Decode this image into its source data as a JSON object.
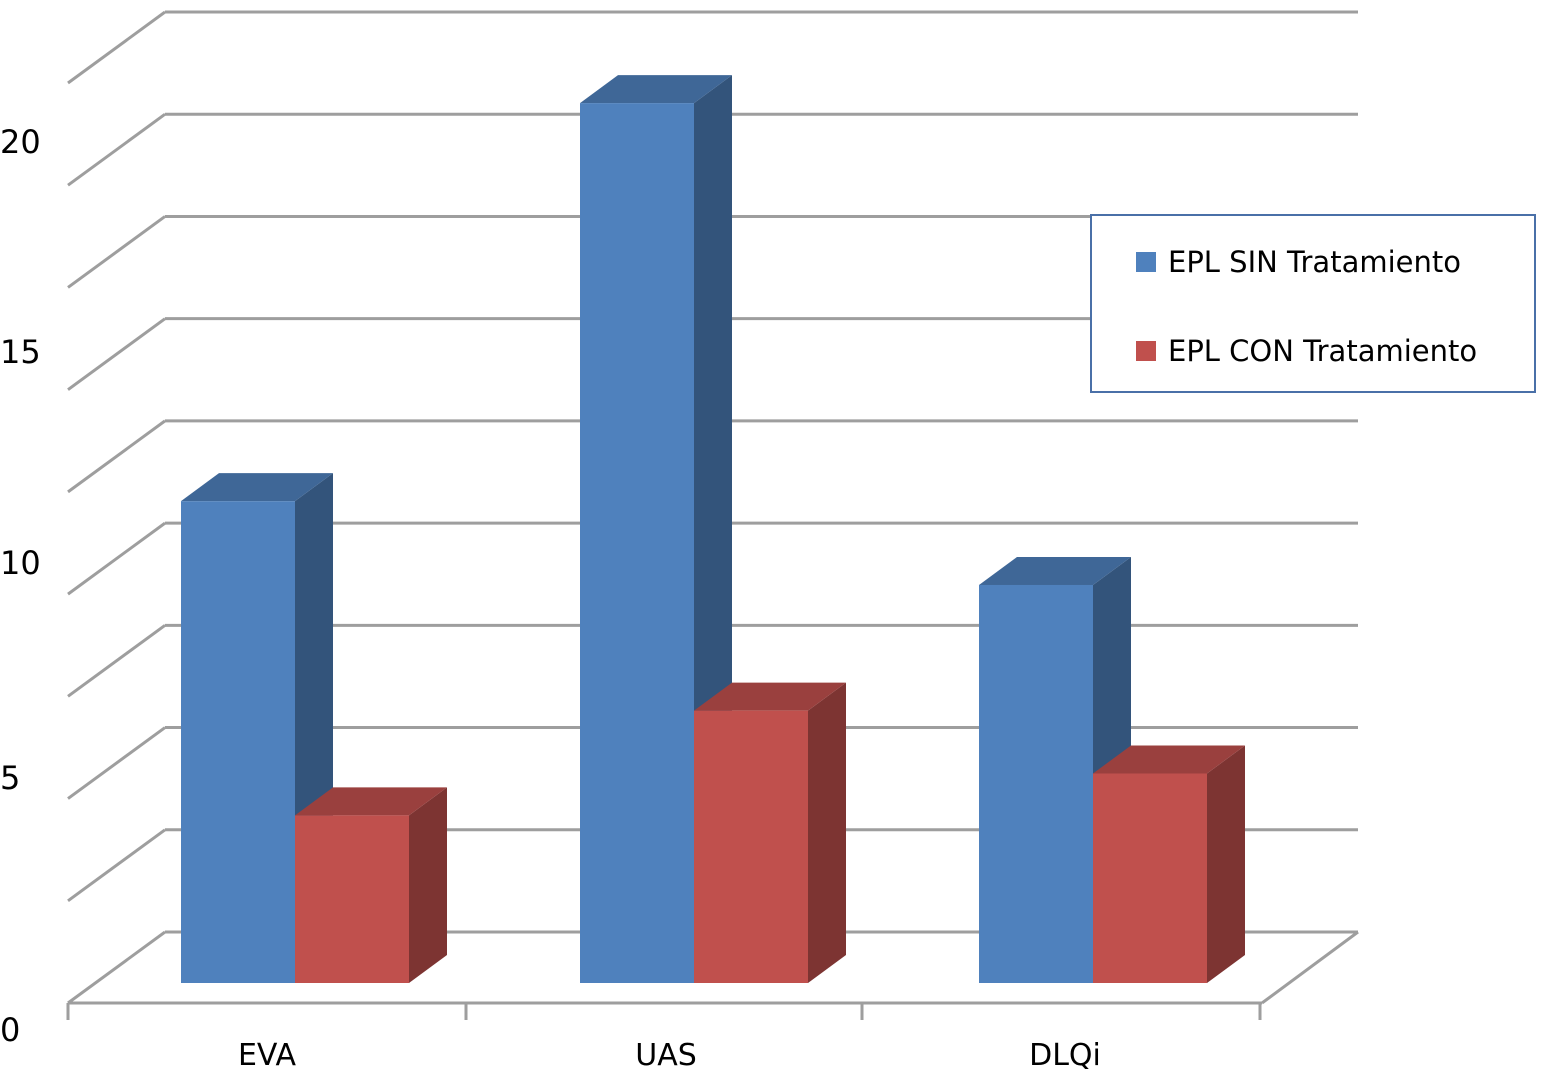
{
  "chart_data": {
    "type": "bar",
    "categories": [
      "EVA",
      "UAS",
      "DLQi"
    ],
    "series": [
      {
        "name": "EPL SIN Tratamiento",
        "values": [
          11.5,
          21.0,
          9.5
        ],
        "color": "#4f81bd"
      },
      {
        "name": "EPL CON Tratamiento",
        "values": [
          4.0,
          6.5,
          5.0
        ],
        "color": "#c0504d"
      }
    ],
    "yticks": [
      "0",
      "5",
      "10",
      "15",
      "20"
    ],
    "ylim": [
      0,
      23
    ],
    "title": "",
    "xlabel": "",
    "ylabel": "",
    "grid": true,
    "legend_position": "right",
    "projection": "3d"
  }
}
